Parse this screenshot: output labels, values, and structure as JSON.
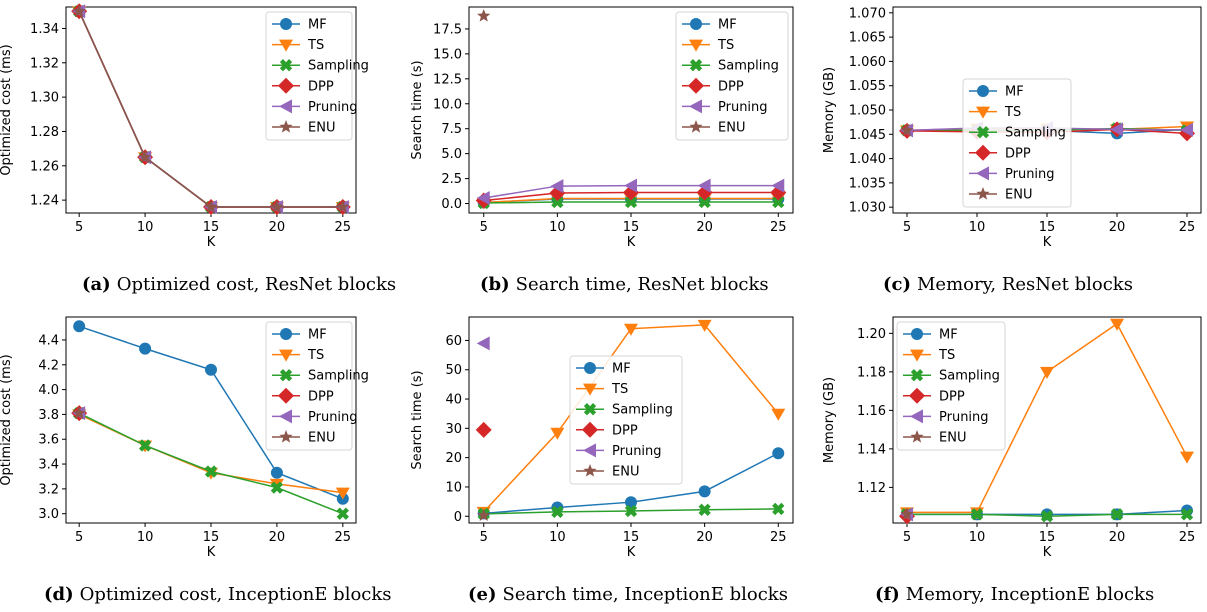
{
  "colors": {
    "MF": "#1f77b4",
    "TS": "#ff7f0e",
    "Sampling": "#2ca02c",
    "DPP": "#d62728",
    "Pruning": "#9467bd",
    "ENU": "#8c564b"
  },
  "markers": {
    "MF": "circle",
    "TS": "triangle-down",
    "Sampling": "x-filled",
    "DPP": "diamond",
    "Pruning": "triangle-left",
    "ENU": "star"
  },
  "chart_data": [
    {
      "id": "a",
      "type": "line",
      "caption_label": "(a)",
      "caption_text": "Optimized cost, ResNet blocks",
      "xlabel": "K",
      "ylabel": "Optimized cost (ms)",
      "x_ticks": [
        5,
        10,
        15,
        20,
        25
      ],
      "xlim": [
        4.0,
        26.0
      ],
      "ylim": [
        1.2325,
        1.3525
      ],
      "y_ticks": [
        1.24,
        1.26,
        1.28,
        1.3,
        1.32,
        1.34
      ],
      "y_tick_labels": [
        "1.24",
        "1.26",
        "1.28",
        "1.30",
        "1.32",
        "1.34"
      ],
      "legend_position": "upper-right",
      "series": [
        {
          "name": "MF",
          "x": [
            5,
            10,
            15,
            20,
            25
          ],
          "y": [
            1.35,
            1.265,
            1.236,
            1.236,
            1.236
          ]
        },
        {
          "name": "TS",
          "x": [
            5,
            10,
            15,
            20,
            25
          ],
          "y": [
            1.35,
            1.265,
            1.236,
            1.236,
            1.236
          ]
        },
        {
          "name": "Sampling",
          "x": [
            5,
            10,
            15,
            20,
            25
          ],
          "y": [
            1.35,
            1.265,
            1.236,
            1.236,
            1.236
          ]
        },
        {
          "name": "DPP",
          "x": [
            5,
            10,
            15,
            20,
            25
          ],
          "y": [
            1.35,
            1.265,
            1.236,
            1.236,
            1.236
          ]
        },
        {
          "name": "Pruning",
          "x": [
            5,
            10,
            15,
            20,
            25
          ],
          "y": [
            1.35,
            1.265,
            1.236,
            1.236,
            1.236
          ]
        },
        {
          "name": "ENU",
          "x": [
            5,
            10,
            15,
            20,
            25
          ],
          "y": [
            1.35,
            1.265,
            1.236,
            1.236,
            1.236
          ]
        }
      ]
    },
    {
      "id": "b",
      "type": "line",
      "caption_label": "(b)",
      "caption_text": "Search time, ResNet blocks",
      "xlabel": "K",
      "ylabel": "Search time (s)",
      "x_ticks": [
        5,
        10,
        15,
        20,
        25
      ],
      "xlim": [
        4.0,
        26.0
      ],
      "ylim": [
        -0.95,
        19.7
      ],
      "y_ticks": [
        0.0,
        2.5,
        5.0,
        7.5,
        10.0,
        12.5,
        15.0,
        17.5
      ],
      "y_tick_labels": [
        "0.0",
        "2.5",
        "5.0",
        "7.5",
        "10.0",
        "12.5",
        "15.0",
        "17.5"
      ],
      "legend_position": "upper-right",
      "series": [
        {
          "name": "MF",
          "x": [
            5,
            10,
            15,
            20,
            25
          ],
          "y": [
            0.1,
            0.45,
            0.45,
            0.45,
            0.45
          ]
        },
        {
          "name": "TS",
          "x": [
            5,
            10,
            15,
            20,
            25
          ],
          "y": [
            0.1,
            0.5,
            0.5,
            0.5,
            0.5
          ]
        },
        {
          "name": "Sampling",
          "x": [
            5,
            10,
            15,
            20,
            25
          ],
          "y": [
            0.05,
            0.15,
            0.15,
            0.15,
            0.15
          ]
        },
        {
          "name": "DPP",
          "x": [
            5,
            10,
            15,
            20,
            25
          ],
          "y": [
            0.3,
            1.05,
            1.1,
            1.1,
            1.1
          ]
        },
        {
          "name": "Pruning",
          "x": [
            5,
            10,
            15,
            20,
            25
          ],
          "y": [
            0.55,
            1.75,
            1.8,
            1.8,
            1.8
          ]
        },
        {
          "name": "ENU",
          "x": [
            5
          ],
          "y": [
            18.8
          ]
        }
      ]
    },
    {
      "id": "c",
      "type": "line",
      "caption_label": "(c)",
      "caption_text": "Memory, ResNet blocks",
      "xlabel": "K",
      "ylabel": "Memory (GB)",
      "x_ticks": [
        5,
        10,
        15,
        20,
        25
      ],
      "xlim": [
        4.0,
        26.0
      ],
      "ylim": [
        1.0288,
        1.0712
      ],
      "y_ticks": [
        1.03,
        1.035,
        1.04,
        1.045,
        1.05,
        1.055,
        1.06,
        1.065,
        1.07
      ],
      "y_tick_labels": [
        "1.030",
        "1.035",
        "1.040",
        "1.045",
        "1.050",
        "1.055",
        "1.060",
        "1.065",
        "1.070"
      ],
      "legend_position": "center-left",
      "series": [
        {
          "name": "MF",
          "x": [
            5,
            10,
            15,
            20,
            25
          ],
          "y": [
            1.0458,
            1.0458,
            1.0458,
            1.0452,
            1.046
          ]
        },
        {
          "name": "TS",
          "x": [
            5,
            10,
            15,
            20,
            25
          ],
          "y": [
            1.0458,
            1.0462,
            1.0462,
            1.046,
            1.0466
          ]
        },
        {
          "name": "Sampling",
          "x": [
            5,
            10,
            15,
            20,
            25
          ],
          "y": [
            1.0458,
            1.0458,
            1.0458,
            1.0462,
            1.0458
          ]
        },
        {
          "name": "DPP",
          "x": [
            5,
            10,
            15,
            20,
            25
          ],
          "y": [
            1.0457,
            1.0455,
            1.0454,
            1.046,
            1.0452
          ]
        },
        {
          "name": "Pruning",
          "x": [
            5,
            10,
            15,
            20,
            25
          ],
          "y": [
            1.0458,
            1.0463,
            1.0463,
            1.046,
            1.0459
          ]
        },
        {
          "name": "ENU",
          "x": [
            5
          ],
          "y": [
            1.0458
          ]
        }
      ]
    },
    {
      "id": "d",
      "type": "line",
      "caption_label": "(d)",
      "caption_text": "Optimized cost, InceptionE blocks",
      "xlabel": "K",
      "ylabel": "Optimized cost (ms)",
      "x_ticks": [
        5,
        10,
        15,
        20,
        25
      ],
      "xlim": [
        4.0,
        26.0
      ],
      "ylim": [
        2.925,
        4.585
      ],
      "y_ticks": [
        3.0,
        3.2,
        3.4,
        3.6,
        3.8,
        4.0,
        4.2,
        4.4
      ],
      "y_tick_labels": [
        "3.0",
        "3.2",
        "3.4",
        "3.6",
        "3.8",
        "4.0",
        "4.2",
        "4.4"
      ],
      "legend_position": "upper-right",
      "series": [
        {
          "name": "MF",
          "x": [
            5,
            10,
            15,
            20,
            25
          ],
          "y": [
            4.51,
            4.33,
            4.16,
            3.33,
            3.12
          ]
        },
        {
          "name": "TS",
          "x": [
            5,
            10,
            15,
            20,
            25
          ],
          "y": [
            3.8,
            3.55,
            3.33,
            3.24,
            3.17
          ]
        },
        {
          "name": "Sampling",
          "x": [
            5,
            10,
            15,
            20,
            25
          ],
          "y": [
            3.81,
            3.55,
            3.34,
            3.21,
            3.0
          ]
        },
        {
          "name": "DPP",
          "x": [
            5
          ],
          "y": [
            3.81
          ]
        },
        {
          "name": "Pruning",
          "x": [
            5
          ],
          "y": [
            3.81
          ]
        },
        {
          "name": "ENU",
          "x": [
            5
          ],
          "y": [
            3.81
          ]
        }
      ]
    },
    {
      "id": "e",
      "type": "line",
      "caption_label": "(e)",
      "caption_text": "Search time, InceptionE blocks",
      "xlabel": "K",
      "ylabel": "Search time (s)",
      "x_ticks": [
        5,
        10,
        15,
        20,
        25
      ],
      "xlim": [
        4.0,
        26.0
      ],
      "ylim": [
        -2.3,
        68.0
      ],
      "y_ticks": [
        0,
        10,
        20,
        30,
        40,
        50,
        60
      ],
      "y_tick_labels": [
        "0",
        "10",
        "20",
        "30",
        "40",
        "50",
        "60"
      ],
      "legend_position": "center",
      "series": [
        {
          "name": "MF",
          "x": [
            5,
            10,
            15,
            20,
            25
          ],
          "y": [
            1.0,
            3.0,
            4.8,
            8.5,
            21.5
          ]
        },
        {
          "name": "TS",
          "x": [
            5,
            10,
            15,
            20,
            25
          ],
          "y": [
            1.5,
            28.5,
            64.0,
            65.3,
            35.0
          ]
        },
        {
          "name": "Sampling",
          "x": [
            5,
            10,
            15,
            20,
            25
          ],
          "y": [
            0.8,
            1.5,
            1.8,
            2.2,
            2.5
          ]
        },
        {
          "name": "DPP",
          "x": [
            5
          ],
          "y": [
            29.5
          ]
        },
        {
          "name": "Pruning",
          "x": [
            5
          ],
          "y": [
            59.0
          ]
        },
        {
          "name": "ENU",
          "x": [
            5
          ],
          "y": [
            0.3
          ]
        }
      ]
    },
    {
      "id": "f",
      "type": "line",
      "caption_label": "(f)",
      "caption_text": "Memory, InceptionE blocks",
      "xlabel": "K",
      "ylabel": "Memory (GB)",
      "x_ticks": [
        5,
        10,
        15,
        20,
        25
      ],
      "xlim": [
        4.0,
        26.0
      ],
      "ylim": [
        1.1015,
        1.2085
      ],
      "y_ticks": [
        1.12,
        1.14,
        1.16,
        1.18,
        1.2
      ],
      "y_tick_labels": [
        "1.12",
        "1.14",
        "1.16",
        "1.18",
        "1.20"
      ],
      "legend_position": "upper-left",
      "series": [
        {
          "name": "MF",
          "x": [
            5,
            10,
            15,
            20,
            25
          ],
          "y": [
            1.106,
            1.106,
            1.106,
            1.106,
            1.108
          ]
        },
        {
          "name": "TS",
          "x": [
            5,
            10,
            15,
            20,
            25
          ],
          "y": [
            1.107,
            1.107,
            1.18,
            1.205,
            1.136
          ]
        },
        {
          "name": "Sampling",
          "x": [
            5,
            10,
            15,
            20,
            25
          ],
          "y": [
            1.106,
            1.106,
            1.105,
            1.106,
            1.106
          ]
        },
        {
          "name": "DPP",
          "x": [
            5
          ],
          "y": [
            1.105
          ]
        },
        {
          "name": "Pruning",
          "x": [
            5
          ],
          "y": [
            1.106
          ]
        },
        {
          "name": "ENU",
          "x": [
            5
          ],
          "y": [
            1.106
          ]
        }
      ]
    }
  ]
}
